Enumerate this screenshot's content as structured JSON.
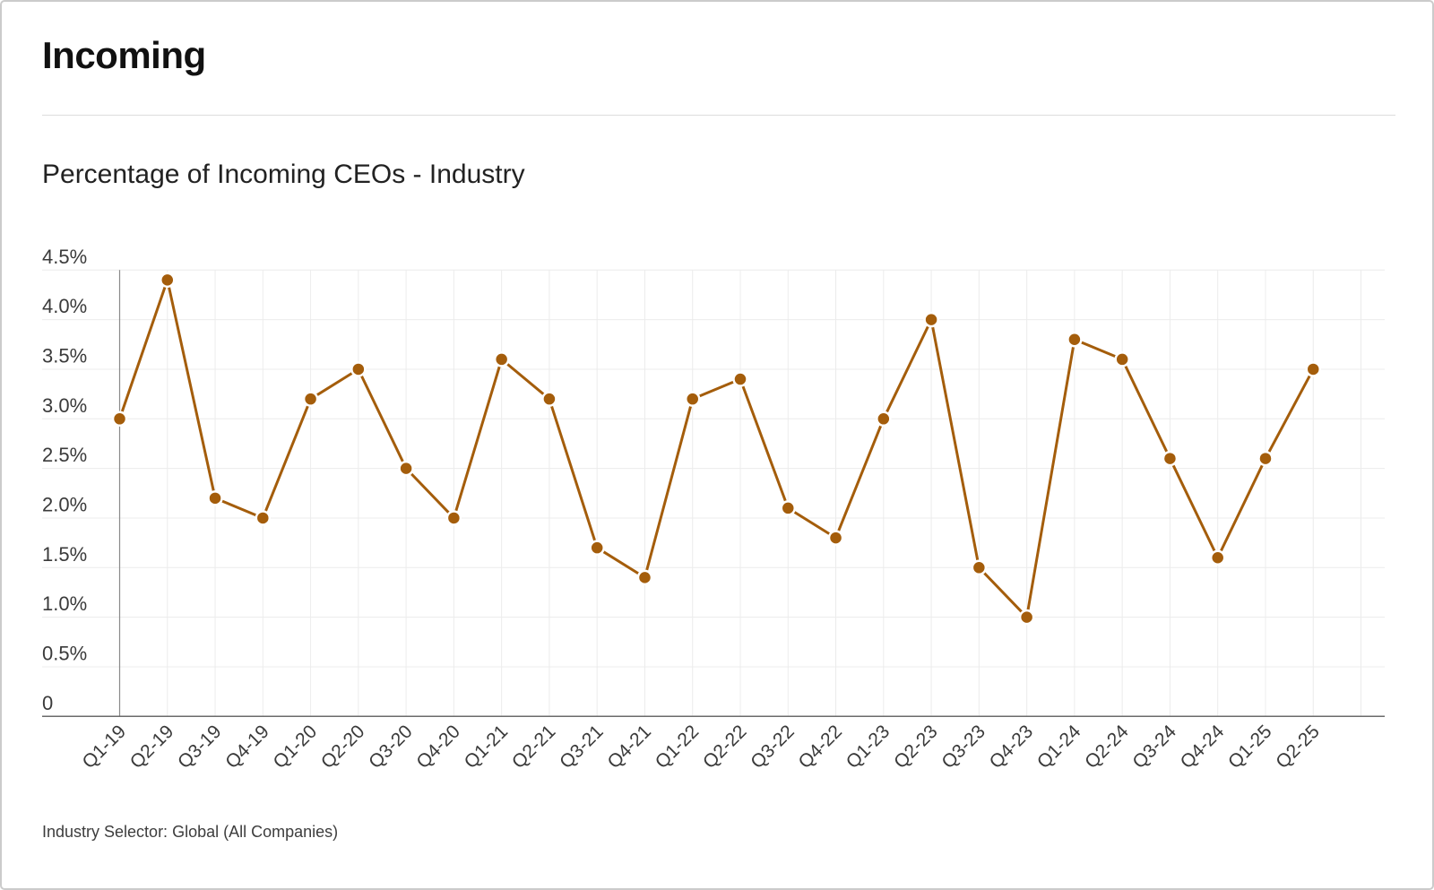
{
  "page": {
    "title": "Incoming",
    "footer": "Industry Selector: Global (All Companies)"
  },
  "chart_data": {
    "type": "line",
    "title": "Percentage of Incoming CEOs - Industry",
    "categories": [
      "Q1-19",
      "Q2-19",
      "Q3-19",
      "Q4-19",
      "Q1-20",
      "Q2-20",
      "Q3-20",
      "Q4-20",
      "Q1-21",
      "Q2-21",
      "Q3-21",
      "Q4-21",
      "Q1-22",
      "Q2-22",
      "Q3-22",
      "Q4-22",
      "Q1-23",
      "Q2-23",
      "Q3-23",
      "Q4-23",
      "Q1-24",
      "Q2-24",
      "Q3-24",
      "Q4-24",
      "Q1-25",
      "Q2-25"
    ],
    "values": [
      3.0,
      4.4,
      2.2,
      2.0,
      3.2,
      3.5,
      2.5,
      2.0,
      3.6,
      3.2,
      1.7,
      1.4,
      3.2,
      3.4,
      2.1,
      1.8,
      3.0,
      4.0,
      1.5,
      1.0,
      3.8,
      3.6,
      2.6,
      1.6,
      2.6,
      3.5
    ],
    "xlabel": "",
    "ylabel": "",
    "ylim": [
      0,
      4.5
    ],
    "ytick_step": 0.5,
    "ytick_labels": [
      "0",
      "0.5%",
      "1.0%",
      "1.5%",
      "2.0%",
      "2.5%",
      "3.0%",
      "3.5%",
      "4.0%",
      "4.5%"
    ],
    "grid": true,
    "legend": "none",
    "line_color": "#A45D0B",
    "point_color": "#A45D0B",
    "grid_color": "#ececec",
    "axis_color": "#6b6b6b",
    "tick_label_color": "#3a3a3a"
  }
}
